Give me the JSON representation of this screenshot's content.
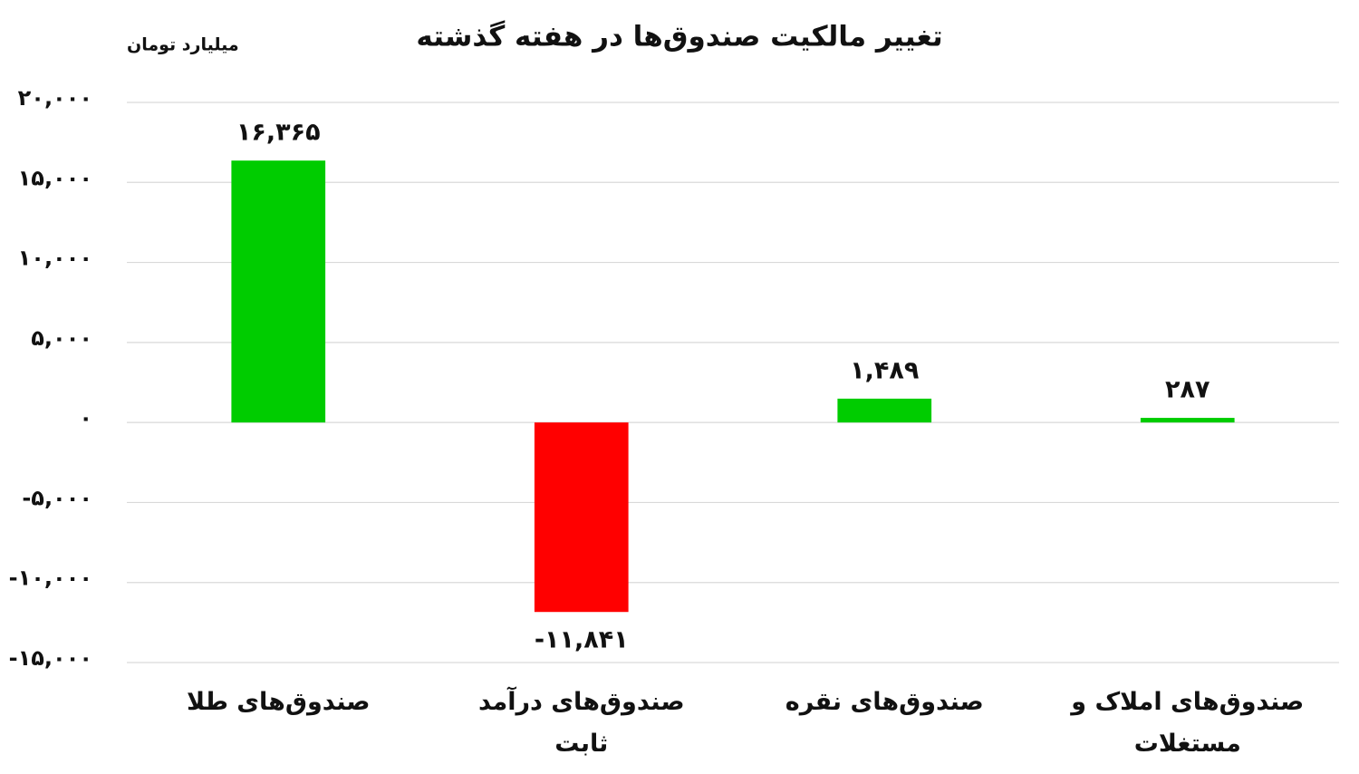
{
  "chart_data": {
    "type": "bar",
    "title": "تغییر مالکیت صندوق‌ها در هفته گذشته",
    "y_label": "میلیارد تومان",
    "categories": [
      "صندوق‌های طلا",
      "صندوق‌های درآمد ثابت",
      "صندوق‌های نقره",
      "صندوق‌های املاک و مستغلات"
    ],
    "values": [
      16365,
      -11841,
      1489,
      287
    ],
    "value_labels": [
      "۱۶,۳۶۵",
      "-۱۱,۸۴۱",
      "۱,۴۸۹",
      "۲۸۷"
    ],
    "colors": [
      "#00cc00",
      "#ff0000",
      "#00cc00",
      "#00cc00"
    ],
    "ylim": [
      -15000,
      20000
    ],
    "yticks": [
      {
        "value": -15000,
        "label": "-۱۵,۰۰۰"
      },
      {
        "value": -10000,
        "label": "-۱۰,۰۰۰"
      },
      {
        "value": -5000,
        "label": "-۵,۰۰۰"
      },
      {
        "value": 0,
        "label": "۰"
      },
      {
        "value": 5000,
        "label": "۵,۰۰۰"
      },
      {
        "value": 10000,
        "label": "۱۰,۰۰۰"
      },
      {
        "value": 15000,
        "label": "۱۵,۰۰۰"
      },
      {
        "value": 20000,
        "label": "۲۰,۰۰۰"
      }
    ],
    "grid": true
  }
}
